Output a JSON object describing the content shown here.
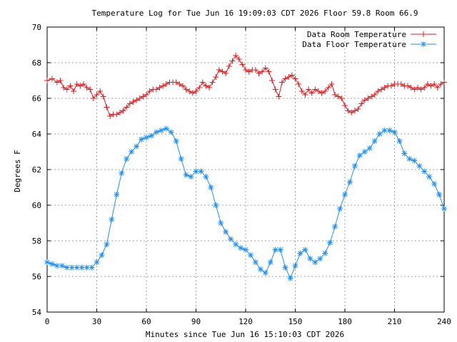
{
  "chart_data": {
    "type": "line",
    "title": "Temperature Log for Tue Jun 16 19:09:03 CDT 2026 Floor 59.8 Room 66.9",
    "xlabel": "Minutes since Tue Jun 16 15:10:03 CDT 2026",
    "ylabel": "Degrees F",
    "xlim": [
      0,
      240
    ],
    "ylim": [
      54,
      70
    ],
    "xticks": [
      0,
      30,
      60,
      90,
      120,
      150,
      180,
      210,
      240
    ],
    "yticks": [
      54,
      56,
      58,
      60,
      62,
      64,
      66,
      68,
      70
    ],
    "grid": true,
    "legend_position": "top-right",
    "series": [
      {
        "name": "Data Room Temperature",
        "color": "#e41a1c",
        "marker": "plus",
        "x": [
          0,
          3,
          6,
          8,
          10,
          12,
          14,
          16,
          18,
          20,
          22,
          24,
          26,
          28,
          30,
          32,
          34,
          36,
          38,
          40,
          42,
          44,
          46,
          48,
          50,
          52,
          54,
          56,
          58,
          60,
          62,
          64,
          66,
          68,
          70,
          72,
          74,
          76,
          78,
          80,
          82,
          84,
          86,
          88,
          90,
          92,
          94,
          96,
          98,
          100,
          102,
          104,
          106,
          108,
          110,
          112,
          114,
          116,
          118,
          120,
          122,
          124,
          126,
          128,
          130,
          132,
          134,
          136,
          138,
          140,
          142,
          144,
          146,
          148,
          150,
          152,
          154,
          156,
          158,
          160,
          162,
          164,
          166,
          168,
          170,
          172,
          174,
          176,
          178,
          180,
          182,
          184,
          186,
          188,
          190,
          192,
          194,
          196,
          198,
          200,
          202,
          204,
          206,
          208,
          210,
          212,
          214,
          216,
          218,
          220,
          222,
          224,
          226,
          228,
          230,
          232,
          234,
          236,
          238,
          240
        ],
        "values": [
          67.0,
          67.1,
          66.9,
          67.0,
          66.6,
          66.5,
          66.7,
          66.4,
          66.8,
          66.7,
          66.8,
          66.6,
          66.5,
          66.0,
          66.2,
          66.4,
          66.1,
          65.5,
          65.0,
          65.1,
          65.1,
          65.2,
          65.3,
          65.5,
          65.7,
          65.8,
          65.9,
          66.0,
          66.1,
          66.2,
          66.4,
          66.5,
          66.5,
          66.6,
          66.7,
          66.8,
          66.9,
          66.9,
          66.9,
          66.8,
          66.7,
          66.5,
          66.4,
          66.3,
          66.4,
          66.6,
          66.9,
          66.7,
          66.6,
          66.9,
          67.2,
          67.6,
          67.5,
          67.4,
          67.8,
          68.1,
          68.4,
          68.2,
          67.9,
          67.6,
          67.5,
          67.6,
          67.6,
          67.4,
          67.5,
          67.7,
          67.5,
          67.0,
          66.5,
          66.1,
          66.9,
          67.1,
          67.2,
          67.3,
          67.1,
          66.8,
          66.4,
          66.2,
          66.5,
          66.3,
          66.5,
          66.4,
          66.3,
          66.4,
          66.6,
          66.8,
          66.2,
          66.1,
          66.0,
          65.6,
          65.3,
          65.2,
          65.3,
          65.4,
          65.7,
          65.9,
          66.0,
          66.1,
          66.2,
          66.4,
          66.5,
          66.6,
          66.7,
          66.7,
          66.8,
          66.8,
          66.8,
          66.7,
          66.7,
          66.6,
          66.5,
          66.6,
          66.5,
          66.6,
          66.8,
          66.7,
          66.8,
          66.6,
          66.8,
          66.9
        ]
      },
      {
        "name": "Data Floor Temperature",
        "color": "#1e90ff",
        "marker": "star",
        "x": [
          0,
          3,
          6,
          9,
          12,
          15,
          18,
          21,
          24,
          27,
          30,
          33,
          36,
          39,
          42,
          45,
          48,
          51,
          54,
          57,
          60,
          63,
          66,
          69,
          72,
          75,
          78,
          81,
          84,
          87,
          90,
          93,
          96,
          99,
          102,
          105,
          108,
          111,
          114,
          117,
          120,
          123,
          126,
          129,
          132,
          135,
          138,
          141,
          144,
          147,
          150,
          153,
          156,
          159,
          162,
          165,
          168,
          171,
          174,
          177,
          180,
          183,
          186,
          189,
          192,
          195,
          198,
          201,
          204,
          207,
          210,
          213,
          216,
          219,
          222,
          225,
          228,
          231,
          234,
          237,
          240
        ],
        "values": [
          56.8,
          56.7,
          56.6,
          56.6,
          56.5,
          56.5,
          56.5,
          56.5,
          56.5,
          56.5,
          56.8,
          57.2,
          57.8,
          59.2,
          60.6,
          61.8,
          62.6,
          63.0,
          63.3,
          63.7,
          63.8,
          63.9,
          64.1,
          64.2,
          64.3,
          64.1,
          63.6,
          62.6,
          61.7,
          61.6,
          61.9,
          61.9,
          61.6,
          61.0,
          60.0,
          59.0,
          58.5,
          58.1,
          57.8,
          57.6,
          57.5,
          57.2,
          56.8,
          56.4,
          56.2,
          56.8,
          57.5,
          57.5,
          56.5,
          55.9,
          56.6,
          57.3,
          57.5,
          57.0,
          56.8,
          57.0,
          57.3,
          57.9,
          58.8,
          59.8,
          60.6,
          61.3,
          62.2,
          62.8,
          63.0,
          63.2,
          63.6,
          64.0,
          64.2,
          64.2,
          64.1,
          63.6,
          62.9,
          62.6,
          62.5,
          62.2,
          61.9,
          61.6,
          61.2,
          60.6,
          59.8
        ]
      }
    ]
  }
}
